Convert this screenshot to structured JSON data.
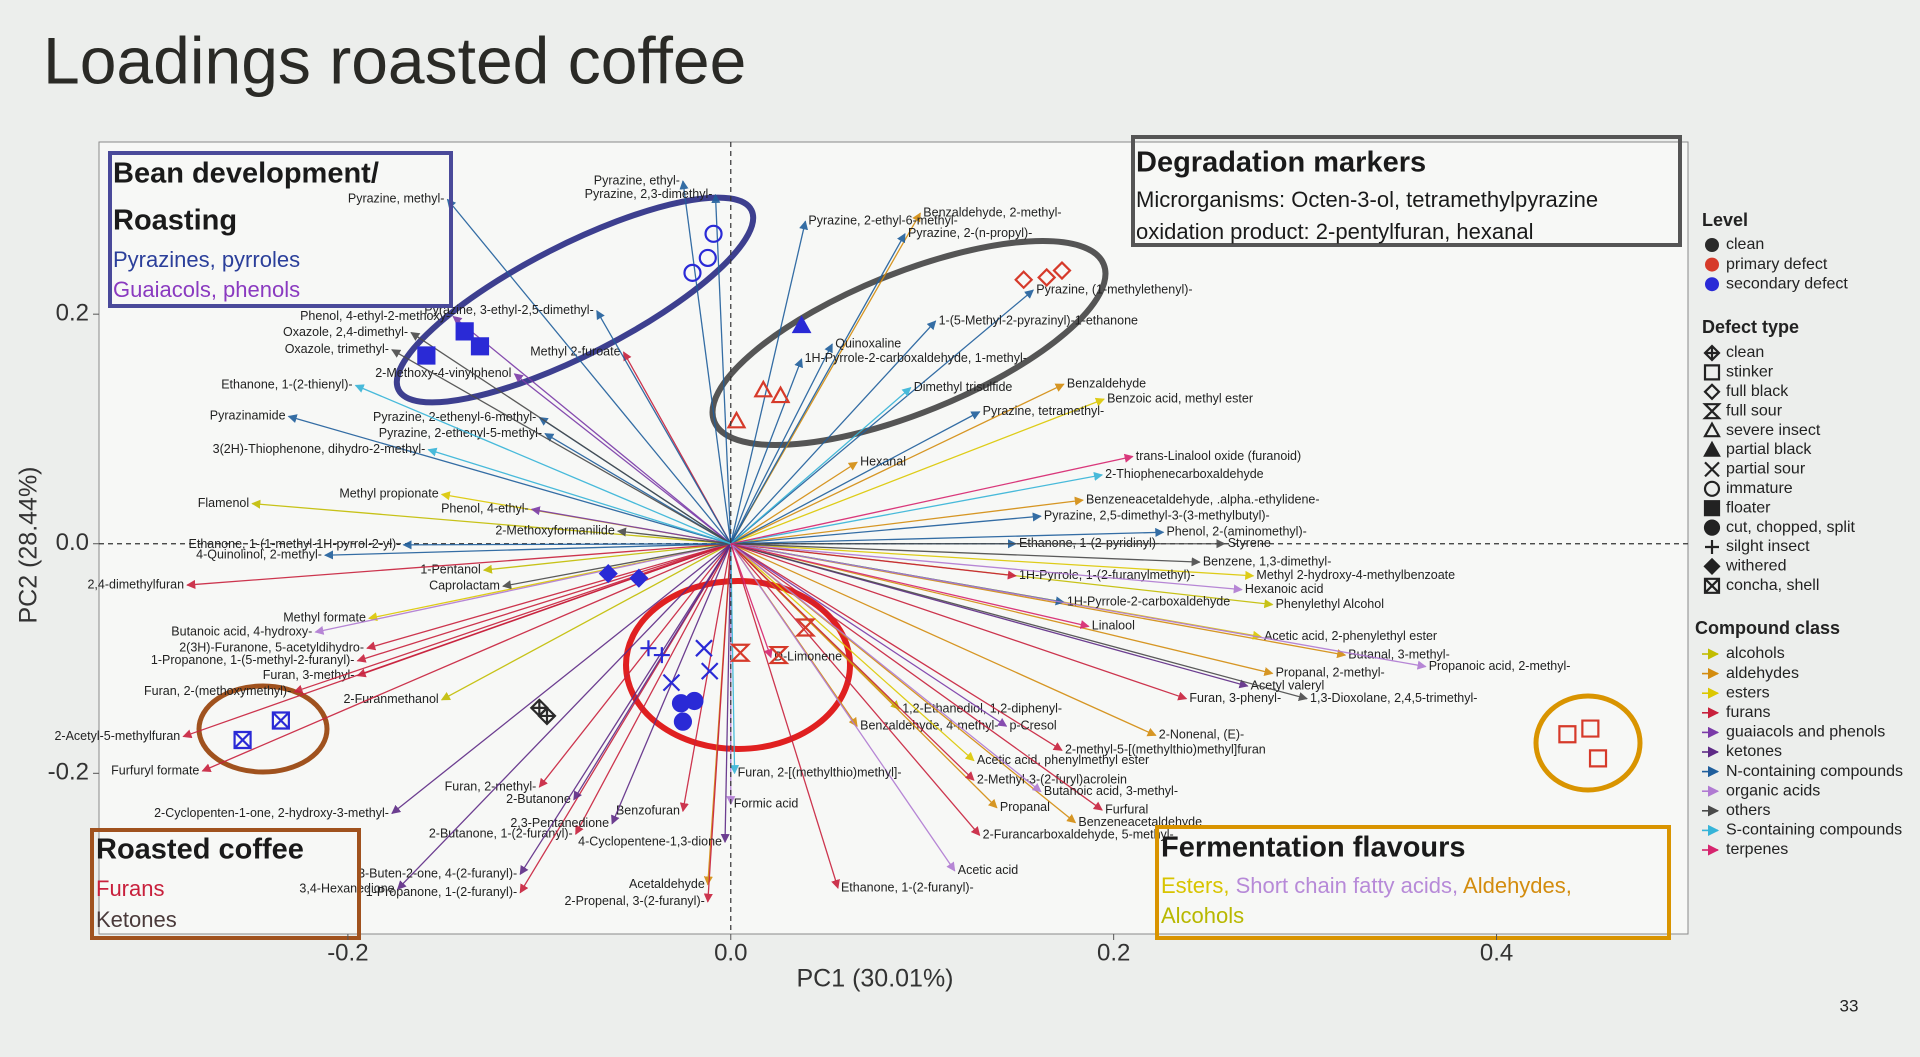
{
  "chart_data": {
    "type": "biplot",
    "title": "Loadings roasted coffee",
    "xlabel": "PC1 (30.01%)",
    "ylabel": "PC2 (28.44%)",
    "xlim": [
      -0.33,
      0.5
    ],
    "ylim": [
      -0.34,
      0.35
    ],
    "xticks": [
      -0.2,
      {
        "value": 0,
        "label": "0.0"
      },
      0.2,
      0.4
    ],
    "yticks": [
      -0.2,
      {
        "value": 0,
        "label": "0.0"
      },
      0.2
    ],
    "page_number": "33",
    "class_title": "Compound class",
    "series": [
      {
        "name": "alcohols",
        "color": "#c2bd00",
        "labels": [
          "Phenylethyl Alcohol",
          "1-Pentanol",
          "Flamenol",
          "2-Furanmethanol",
          "1,2-Ethanediol, 1,2-diphenyl-"
        ],
        "x": [
          0.283,
          -0.129,
          -0.25,
          -0.151,
          0.088
        ],
        "values": [
          -0.053,
          -0.023,
          0.035,
          -0.136,
          -0.144
        ]
      },
      {
        "name": "aldehydes",
        "color": "#d38c0e",
        "labels": [
          "Benzaldehyde, 2-methyl-",
          "Benzaldehyde",
          "Hexanal",
          "Benzeneacetaldehyde, .alpha.-ethylidene-",
          "Benzaldehyde, 4-methyl-",
          "Propanal, 2-methyl-",
          "Butanal, 3-methyl-",
          "2-Nonenal, (E)-",
          "Propanal",
          "Acetaldehyde",
          "Benzeneacetaldehyde"
        ],
        "x": [
          0.099,
          0.174,
          0.066,
          0.184,
          0.066,
          0.283,
          0.321,
          0.222,
          0.139,
          -0.012,
          0.18
        ],
        "values": [
          0.288,
          0.139,
          0.071,
          0.038,
          -0.159,
          -0.113,
          -0.097,
          -0.167,
          -0.23,
          -0.297,
          -0.243
        ]
      },
      {
        "name": "esters",
        "color": "#dcc800",
        "labels": [
          "Methyl 2-hydroxy-4-methylbenzoate",
          "Methyl propionate",
          "Methyl formate",
          "Benzoic acid, methyl ester",
          "Acetic acid, 2-phenylethyl ester",
          "Acetic acid, phenylmethyl ester"
        ],
        "x": [
          0.273,
          -0.151,
          -0.189,
          0.195,
          0.277,
          0.127
        ],
        "values": [
          -0.028,
          0.043,
          -0.065,
          0.126,
          -0.081,
          -0.189
        ]
      },
      {
        "name": "furans",
        "color": "#c8203c",
        "labels": [
          "2,4-dimethylfuran",
          "1-Propanone, 1-(5-methyl-2-furanyl)-",
          "2(3H)-Furanone, 5-acetyldihydro-",
          "Furan, 3-methyl-",
          "Furan, 2-(methoxymethyl)-",
          "2-Acetyl-5-methylfuran",
          "Furfuryl formate",
          "2-methyl-5-[(methylthio)methyl]furan",
          "2-Methyl-3-(2-furyl)acrolein",
          "2-Furancarboxaldehyde, 5-methyl-",
          "Furan, 3-phenyl-",
          "2-Butanone, 1-(2-furanyl)-",
          "Benzofuran",
          "1-Propanone, 1-(2-furanyl)-",
          "Ethanone, 1-(2-furanyl)-",
          "2-Propenal, 3-(2-furanyl)-",
          "Furan, 2-methyl-",
          "Methyl 2-furoate",
          "1H-Pyrrole, 1-(2-furanylmethyl)-",
          "Furfural"
        ],
        "x": [
          -0.284,
          -0.195,
          -0.19,
          -0.195,
          -0.228,
          -0.286,
          -0.276,
          0.173,
          0.127,
          0.13,
          0.238,
          -0.081,
          -0.025,
          -0.11,
          0.056,
          -0.012,
          -0.1,
          -0.056,
          0.149,
          0.194
        ],
        "values": [
          -0.036,
          -0.102,
          -0.091,
          -0.115,
          -0.129,
          -0.168,
          -0.198,
          -0.18,
          -0.206,
          -0.254,
          -0.135,
          -0.253,
          -0.233,
          -0.304,
          -0.3,
          -0.312,
          -0.212,
          0.167,
          -0.028,
          -0.232
        ]
      },
      {
        "name": "guaiacols and phenols",
        "color": "#7a3aa8",
        "labels": [
          "Phenol, 4-ethyl-2-methoxy-",
          "Phenol, 4-ethyl-",
          "2-Methoxy-4-vinylphenol",
          "p-Cresol"
        ],
        "x": [
          -0.145,
          -0.104,
          -0.113,
          0.144
        ],
        "values": [
          0.198,
          0.03,
          0.148,
          -0.159
        ]
      },
      {
        "name": "ketones",
        "color": "#5e2a86",
        "labels": [
          "2-Cyclopenten-1-one, 2-hydroxy-3-methyl-",
          "3,4-Hexanedione",
          "2,3-Pentanedione",
          "4-Cyclopentene-1,3-dione",
          "2-Butanone",
          "Acetyl valeryl",
          "3-Buten-2-one, 4-(2-furanyl)-"
        ],
        "x": [
          -0.177,
          -0.174,
          -0.062,
          -0.003,
          -0.082,
          0.27,
          -0.11
        ],
        "values": [
          -0.235,
          -0.301,
          -0.244,
          -0.26,
          -0.223,
          -0.124,
          -0.288
        ]
      },
      {
        "name": "N-containing compounds",
        "color": "#1f5e9c",
        "labels": [
          "Pyrazine, ethyl-",
          "Pyrazine, 2,3-dimethyl-",
          "Pyrazine, methyl-",
          "Pyrazinamide",
          "Pyrazine, 2-ethenyl-6-methyl-",
          "Pyrazine, 2-ethenyl-5-methyl-",
          "Pyrazine, 3-ethyl-2,5-dimethyl-",
          "Pyrazine, 2-ethyl-6-methyl-",
          "Pyrazine, 2-(n-propyl)-",
          "Pyrazine, (1-methylethenyl)-",
          "1-(5-Methyl-2-pyrazinyl)-1-ethanone",
          "Quinoxaline",
          "1H-Pyrrole-2-carboxaldehyde, 1-methyl-",
          "Pyrazine, tetramethyl-",
          "Pyrazine, 2,5-dimethyl-3-(3-methylbutyl)-",
          "Ethanone, 1-(2-pyridinyl)-",
          "Phenol, 2-(aminomethyl)-",
          "1H-Pyrrole-2-carboxaldehyde",
          "Ethanone, 1-(1-methyl-1H-pyrrol-2-yl)-",
          "4-Quinolinol, 2-methyl-"
        ],
        "x": [
          -0.025,
          -0.008,
          -0.148,
          -0.231,
          -0.1,
          -0.097,
          -0.07,
          0.039,
          0.091,
          0.158,
          0.107,
          0.053,
          0.037,
          0.13,
          0.162,
          0.149,
          0.226,
          0.174,
          -0.171,
          -0.212
        ],
        "values": [
          0.316,
          0.304,
          0.3,
          0.111,
          0.11,
          0.096,
          0.203,
          0.281,
          0.27,
          0.221,
          0.194,
          0.174,
          0.161,
          0.115,
          0.024,
          0.0,
          0.01,
          -0.051,
          -0.001,
          -0.01
        ]
      },
      {
        "name": "organic acids",
        "color": "#b07ad2",
        "labels": [
          "Hexanoic acid",
          "Butanoic acid, 4-hydroxy-",
          "Butanoic acid, 3-methyl-",
          "Acetic acid",
          "Propanoic acid, 2-methyl-",
          "Formic acid"
        ],
        "x": [
          0.267,
          -0.217,
          0.162,
          0.117,
          0.363,
          0.0
        ],
        "values": [
          -0.04,
          -0.077,
          -0.216,
          -0.285,
          -0.107,
          -0.227
        ]
      },
      {
        "name": "others",
        "color": "#4a4a4a",
        "labels": [
          "Oxazole, 2,4-dimethyl-",
          "Oxazole, trimethyl-",
          "Caprolactam",
          "Benzene, 1,3-dimethyl-",
          "Styrene",
          "2-Methoxyformanilide",
          "1,3-Dioxolane, 2,4,5-trimethyl-"
        ],
        "x": [
          -0.167,
          -0.177,
          -0.119,
          0.245,
          0.258,
          -0.059,
          0.301
        ],
        "values": [
          0.184,
          0.169,
          -0.037,
          -0.016,
          0.0,
          0.011,
          -0.135
        ]
      },
      {
        "name": "S-containing compounds",
        "color": "#36b4d8",
        "labels": [
          "Ethanone, 1-(2-thienyl)-",
          "3(2H)-Thiophenone, dihydro-2-methyl-",
          "2-Thiophenecarboxaldehyde",
          "Dimethyl trisulfide",
          "Furan, 2-[(methylthio)methyl]-"
        ],
        "x": [
          -0.196,
          -0.158,
          0.194,
          0.094,
          0.002
        ],
        "values": [
          0.138,
          0.082,
          0.06,
          0.136,
          -0.2
        ]
      },
      {
        "name": "terpenes",
        "color": "#d6246e",
        "labels": [
          "trans-Linalool oxide (furanoid)",
          "Linalool",
          "D-Limonene"
        ],
        "x": [
          0.21,
          0.187,
          0.021
        ],
        "values": [
          0.076,
          -0.072,
          -0.099
        ]
      }
    ],
    "level_title": "Level",
    "levels": [
      {
        "name": "clean",
        "color": "#2a2a2a"
      },
      {
        "name": "primary defect",
        "color": "#d63a2a"
      },
      {
        "name": "secondary defect",
        "color": "#2a2ad6"
      }
    ],
    "defect_title": "Defect type",
    "defect_types": [
      {
        "name": "clean",
        "marker": "crossdiamond",
        "filled": false
      },
      {
        "name": "stinker",
        "marker": "square",
        "filled": false
      },
      {
        "name": "full black",
        "marker": "diamond",
        "filled": false
      },
      {
        "name": "full sour",
        "marker": "hourglass",
        "filled": false
      },
      {
        "name": "severe insect",
        "marker": "triangle",
        "filled": false
      },
      {
        "name": "partial black",
        "marker": "triangle",
        "filled": true
      },
      {
        "name": "partial sour",
        "marker": "x",
        "filled": false
      },
      {
        "name": "immature",
        "marker": "circle",
        "filled": false
      },
      {
        "name": "floater",
        "marker": "square",
        "filled": true
      },
      {
        "name": "cut, chopped, split",
        "marker": "circle",
        "filled": true
      },
      {
        "name": "silght insect",
        "marker": "plus",
        "filled": false
      },
      {
        "name": "withered",
        "marker": "diamond",
        "filled": true
      },
      {
        "name": "concha, shell",
        "marker": "squarex",
        "filled": false
      }
    ],
    "samples": [
      {
        "level": 0,
        "defect": 0,
        "x": [
          -0.1,
          -0.096
        ],
        "values": [
          -0.143,
          -0.15
        ]
      },
      {
        "level": 1,
        "defect": 1,
        "x": [
          0.437,
          0.449,
          0.453
        ],
        "values": [
          -0.166,
          -0.161,
          -0.187
        ]
      },
      {
        "level": 1,
        "defect": 2,
        "x": [
          0.153,
          0.165,
          0.173
        ],
        "values": [
          0.23,
          0.232,
          0.238
        ]
      },
      {
        "level": 1,
        "defect": 3,
        "x": [
          0.025,
          0.039,
          0.005
        ],
        "values": [
          -0.097,
          -0.073,
          -0.095
        ]
      },
      {
        "level": 1,
        "defect": 4,
        "x": [
          0.017,
          0.026,
          0.003
        ],
        "values": [
          0.134,
          0.129,
          0.107
        ]
      },
      {
        "level": 2,
        "defect": 5,
        "x": [
          0.037
        ],
        "values": [
          0.19
        ]
      },
      {
        "level": 2,
        "defect": 6,
        "x": [
          -0.031,
          -0.014,
          -0.011
        ],
        "values": [
          -0.121,
          -0.091,
          -0.111
        ]
      },
      {
        "level": 2,
        "defect": 7,
        "x": [
          -0.009,
          -0.012,
          -0.02
        ],
        "values": [
          0.27,
          0.249,
          0.236
        ]
      },
      {
        "level": 2,
        "defect": 8,
        "x": [
          -0.139,
          -0.131,
          -0.159
        ],
        "values": [
          0.185,
          0.172,
          0.164
        ]
      },
      {
        "level": 2,
        "defect": 9,
        "x": [
          -0.025,
          -0.019,
          -0.026
        ],
        "values": [
          -0.155,
          -0.137,
          -0.139
        ]
      },
      {
        "level": 2,
        "defect": 10,
        "x": [
          -0.036,
          -0.043
        ],
        "values": [
          -0.097,
          -0.091
        ]
      },
      {
        "level": 2,
        "defect": 11,
        "x": [
          -0.064,
          -0.048
        ],
        "values": [
          -0.026,
          -0.03
        ]
      },
      {
        "level": 2,
        "defect": 12,
        "x": [
          -0.255,
          -0.235
        ],
        "values": [
          -0.171,
          -0.154
        ]
      }
    ],
    "boxes": [
      {
        "title": [
          "Bean development/",
          "Roasting"
        ],
        "lines": [
          [
            {
              "text": "Pyrazines, pyrroles",
              "color": "#2b3f9a"
            }
          ],
          [
            {
              "text": "Guaiacols, phenols",
              "color": "#8a3ac0"
            }
          ]
        ]
      },
      {
        "title": [
          "Degradation markers"
        ],
        "lines": [
          [
            {
              "text": "Microrganisms: Octen-3-ol, tetramethylpyrazine",
              "color": "#1a1a1a"
            }
          ],
          [
            {
              "text": "oxidation product: 2-pentylfuran, hexanal",
              "color": "#1a1a1a"
            }
          ]
        ]
      },
      {
        "title": [
          "Roasted coffee"
        ],
        "lines": [
          [
            {
              "text": "Furans",
              "color": "#c8203c"
            }
          ],
          [
            {
              "text": "Ketones",
              "color": "#4a3a3a"
            }
          ]
        ]
      },
      {
        "title": [
          "Fermentation flavours"
        ],
        "lines": [
          [
            {
              "text": "Esters,",
              "color": "#d8c400"
            },
            {
              "text": " Short chain fatty acids,",
              "color": "#b78ad8"
            },
            {
              "text": " Aldehydes,",
              "color": "#d38c0e"
            }
          ],
          [
            {
              "text": "Alcohols",
              "color": "#b8b800"
            }
          ]
        ]
      }
    ]
  }
}
